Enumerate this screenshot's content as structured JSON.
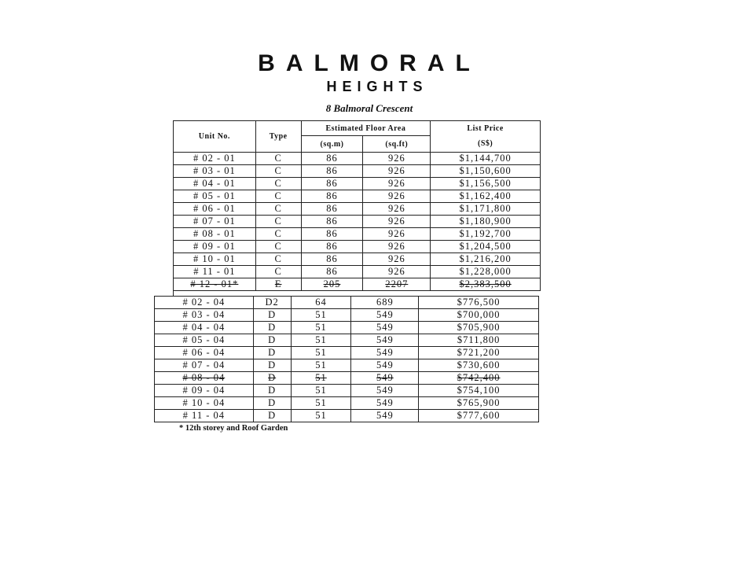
{
  "title": "BALMORAL",
  "subtitle": "HEIGHTS",
  "address": "8 Balmoral Crescent",
  "headers": {
    "unit": "Unit No.",
    "type": "Type",
    "area": "Estimated Floor Area",
    "sqm": "(sq.m)",
    "sqft": "(sq.ft)",
    "price": "List Price",
    "currency": "(S$)"
  },
  "table1": [
    {
      "unit": "# 02 - 01",
      "type": "C",
      "sqm": "86",
      "sqft": "926",
      "price": "$1,144,700",
      "strike": false
    },
    {
      "unit": "# 03 - 01",
      "type": "C",
      "sqm": "86",
      "sqft": "926",
      "price": "$1,150,600",
      "strike": false
    },
    {
      "unit": "# 04 - 01",
      "type": "C",
      "sqm": "86",
      "sqft": "926",
      "price": "$1,156,500",
      "strike": false
    },
    {
      "unit": "# 05 - 01",
      "type": "C",
      "sqm": "86",
      "sqft": "926",
      "price": "$1,162,400",
      "strike": false
    },
    {
      "unit": "# 06 - 01",
      "type": "C",
      "sqm": "86",
      "sqft": "926",
      "price": "$1,171,800",
      "strike": false
    },
    {
      "unit": "# 07 - 01",
      "type": "C",
      "sqm": "86",
      "sqft": "926",
      "price": "$1,180,900",
      "strike": false
    },
    {
      "unit": "# 08 - 01",
      "type": "C",
      "sqm": "86",
      "sqft": "926",
      "price": "$1,192,700",
      "strike": false
    },
    {
      "unit": "# 09 - 01",
      "type": "C",
      "sqm": "86",
      "sqft": "926",
      "price": "$1,204,500",
      "strike": false
    },
    {
      "unit": "# 10 - 01",
      "type": "C",
      "sqm": "86",
      "sqft": "926",
      "price": "$1,216,200",
      "strike": false
    },
    {
      "unit": "# 11 - 01",
      "type": "C",
      "sqm": "86",
      "sqft": "926",
      "price": "$1,228,000",
      "strike": false
    },
    {
      "unit": "# 12 - 01*",
      "type": "E",
      "sqm": "205",
      "sqft": "2207",
      "price": "$2,383,500",
      "strike": true
    }
  ],
  "table2": [
    {
      "unit": "# 02 - 04",
      "type": "D2",
      "sqm": "64",
      "sqft": "689",
      "price": "$776,500",
      "strike": false
    },
    {
      "unit": "# 03 - 04",
      "type": "D",
      "sqm": "51",
      "sqft": "549",
      "price": "$700,000",
      "strike": false
    },
    {
      "unit": "# 04 - 04",
      "type": "D",
      "sqm": "51",
      "sqft": "549",
      "price": "$705,900",
      "strike": false
    },
    {
      "unit": "# 05 - 04",
      "type": "D",
      "sqm": "51",
      "sqft": "549",
      "price": "$711,800",
      "strike": false
    },
    {
      "unit": "# 06 - 04",
      "type": "D",
      "sqm": "51",
      "sqft": "549",
      "price": "$721,200",
      "strike": false
    },
    {
      "unit": "# 07 - 04",
      "type": "D",
      "sqm": "51",
      "sqft": "549",
      "price": "$730,600",
      "strike": false
    },
    {
      "unit": "# 08 - 04",
      "type": "D",
      "sqm": "51",
      "sqft": "549",
      "price": "$742,400",
      "strike": true
    },
    {
      "unit": "# 09 - 04",
      "type": "D",
      "sqm": "51",
      "sqft": "549",
      "price": "$754,100",
      "strike": false
    },
    {
      "unit": "# 10 - 04",
      "type": "D",
      "sqm": "51",
      "sqft": "549",
      "price": "$765,900",
      "strike": false
    },
    {
      "unit": "# 11 - 04",
      "type": "D",
      "sqm": "51",
      "sqft": "549",
      "price": "$777,600",
      "strike": false
    }
  ],
  "footnote": "* 12th storey and Roof Garden"
}
